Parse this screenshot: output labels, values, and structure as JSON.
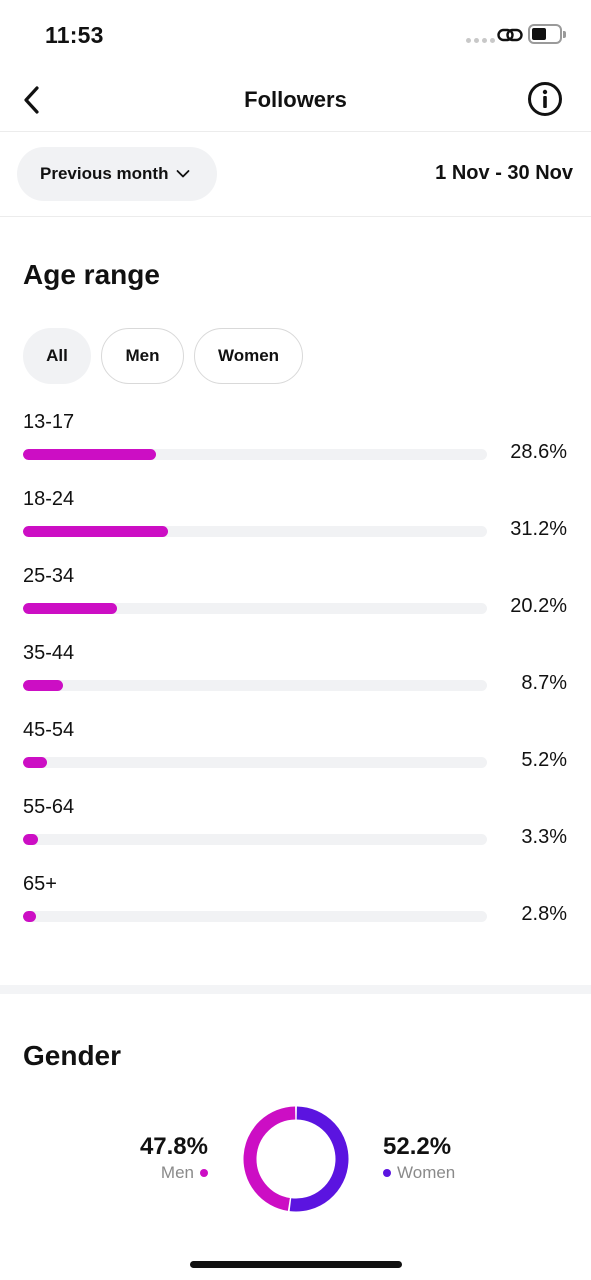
{
  "status": {
    "time": "11:53"
  },
  "header": {
    "title": "Followers"
  },
  "period": {
    "selected": "Previous month",
    "range": "1 Nov - 30 Nov"
  },
  "age_section": {
    "title": "Age range",
    "filters": [
      "All",
      "Men",
      "Women"
    ],
    "active_filter": "All",
    "rows": [
      {
        "label": "13-17",
        "value_text": "28.6%",
        "value": 28.6
      },
      {
        "label": "18-24",
        "value_text": "31.2%",
        "value": 31.2
      },
      {
        "label": "25-34",
        "value_text": "20.2%",
        "value": 20.2
      },
      {
        "label": "35-44",
        "value_text": "8.7%",
        "value": 8.7
      },
      {
        "label": "45-54",
        "value_text": "5.2%",
        "value": 5.2
      },
      {
        "label": "55-64",
        "value_text": "3.3%",
        "value": 3.3
      },
      {
        "label": "65+",
        "value_text": "2.8%",
        "value": 2.8
      }
    ],
    "bar_color": "#cc0ec4",
    "track_color": "#f1f2f4"
  },
  "gender_section": {
    "title": "Gender",
    "men": {
      "pct_text": "47.8%",
      "label": "Men",
      "value": 47.8,
      "color": "#cc0ec4"
    },
    "women": {
      "pct_text": "52.2%",
      "label": "Women",
      "value": 52.2,
      "color": "#5b14e0"
    }
  },
  "icons": [
    "back-chevron-icon",
    "info-icon",
    "chevron-down-icon",
    "link-icon",
    "battery-icon"
  ]
}
